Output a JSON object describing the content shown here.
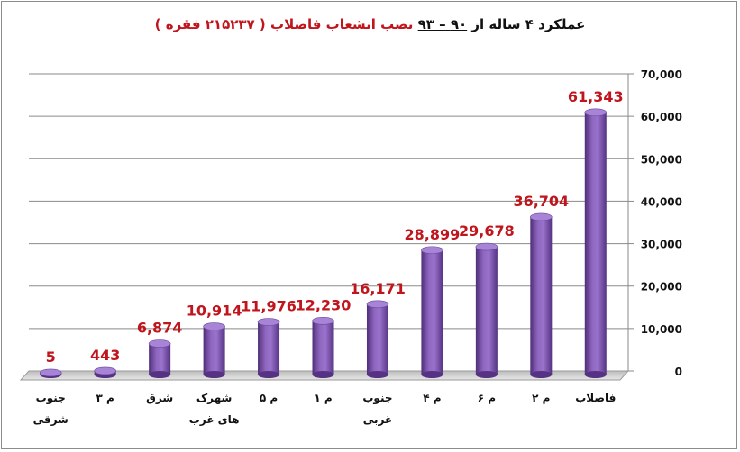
{
  "title": {
    "part1": "عملکرد ۴ ساله از",
    "part2": "۹۰ – ۹۳",
    "part3": "نصب انشعاب فاضلاب",
    "part4": "( ۲۱۵۲۳۷ فقره )"
  },
  "chart_data": {
    "type": "bar",
    "categories": [
      "جنوب شرقی",
      "م ۳",
      "شرق",
      "شهرک های غرب",
      "م ۵",
      "م ۱",
      "جنوب غربی",
      "م ۴",
      "م ۶",
      "م ۲",
      "فاضلاب"
    ],
    "values": [
      5,
      443,
      6874,
      10914,
      11976,
      12230,
      16171,
      28899,
      29678,
      36704,
      61343
    ],
    "data_labels": [
      "5",
      "443",
      "6,874",
      "10,914",
      "11,976",
      "12,230",
      "16,171",
      "28,899",
      "29,678",
      "36,704",
      "61,343"
    ],
    "ylim": [
      0,
      70000
    ],
    "yticks": [
      0,
      10000,
      20000,
      30000,
      40000,
      50000,
      60000,
      70000
    ],
    "ytick_labels": [
      "0",
      "10,000",
      "20,000",
      "30,000",
      "40,000",
      "50,000",
      "60,000",
      "70,000"
    ],
    "y_axis_side": "right",
    "grid": true,
    "legend": "none",
    "bar_color": "#7a54a8",
    "label_color": "#c0151c"
  }
}
